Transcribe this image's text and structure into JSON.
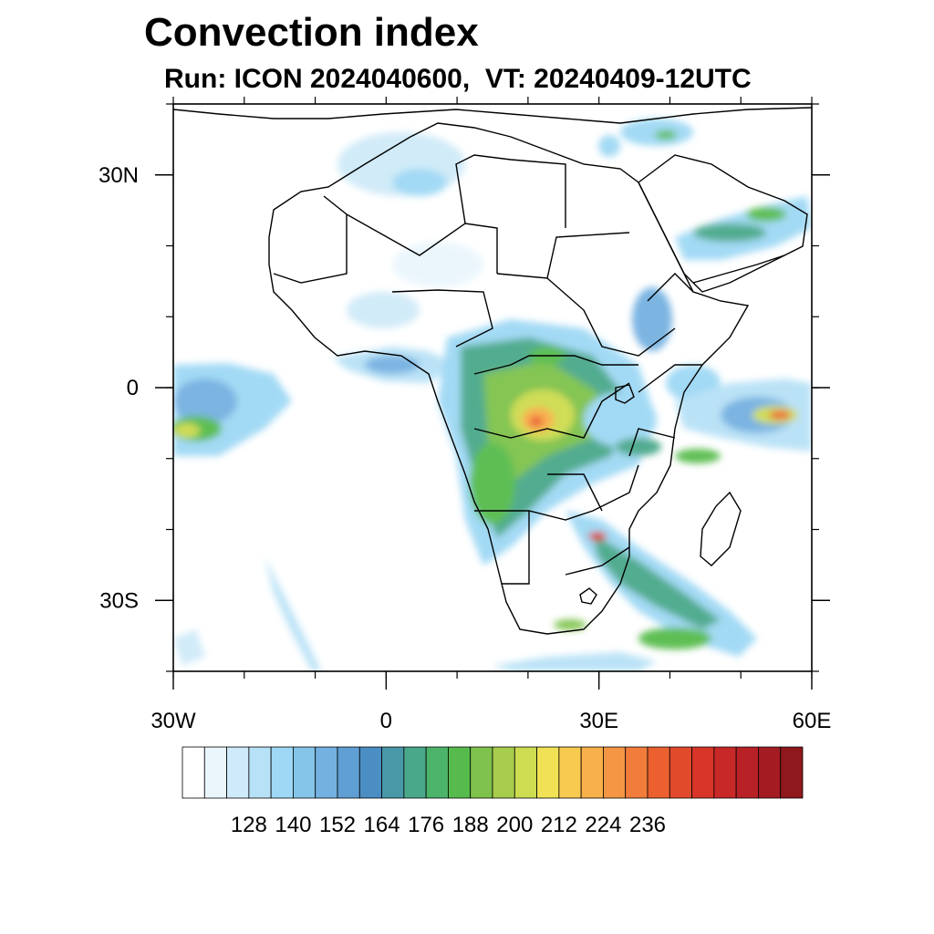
{
  "title": "Convection index",
  "subtitle": "Run: ICON 2024040600,  VT: 20240409-12UTC",
  "map": {
    "lon_range": [
      -30,
      60
    ],
    "lat_range": [
      -40,
      40
    ],
    "y_ticks": [
      {
        "lat": 30,
        "label": "30N"
      },
      {
        "lat": 0,
        "label": "0"
      },
      {
        "lat": -30,
        "label": "30S"
      }
    ],
    "x_ticks": [
      {
        "lon": -30,
        "label": "30W"
      },
      {
        "lon": 0,
        "label": "0"
      },
      {
        "lon": 30,
        "label": "30E"
      },
      {
        "lon": 60,
        "label": "60E"
      }
    ]
  },
  "colorbar": {
    "labels": [
      "128",
      "140",
      "152",
      "164",
      "176",
      "188",
      "200",
      "212",
      "224",
      "236"
    ],
    "colors": [
      "#ffffff",
      "#eaf6fc",
      "#cfeaf8",
      "#b7e1f6",
      "#9ed8f4",
      "#86c5ea",
      "#74b1e1",
      "#5f9fd4",
      "#4a8ec4",
      "#4898a8",
      "#4aa88a",
      "#4cb46a",
      "#56bb4c",
      "#7ec24c",
      "#a8cc4c",
      "#cddc50",
      "#f0e254",
      "#f8ca50",
      "#f8b04a",
      "#f49644",
      "#f27c3a",
      "#ec6030",
      "#e24a2c",
      "#d83428",
      "#c82828",
      "#b82226",
      "#a41c22",
      "#8e181c"
    ]
  }
}
